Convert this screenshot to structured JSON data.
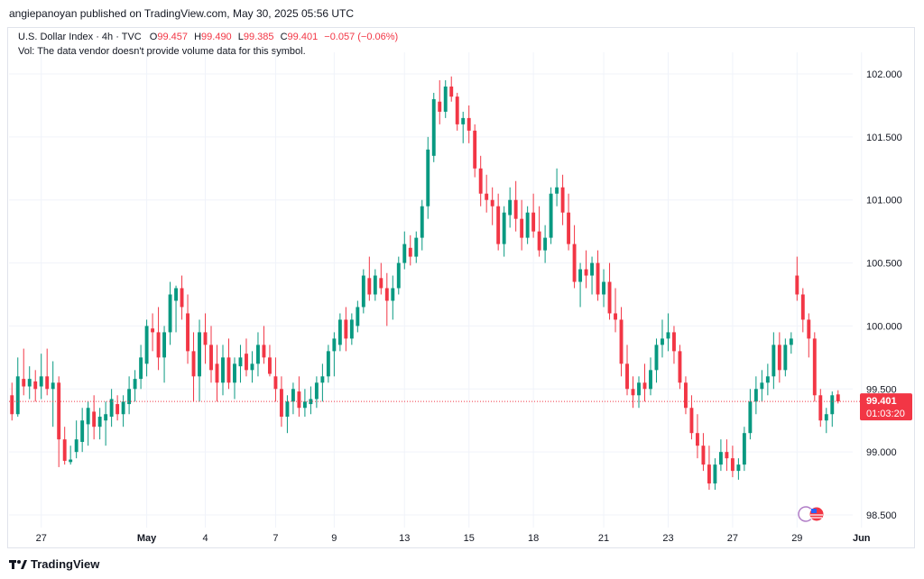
{
  "header": {
    "published_text": "angiepanoyan published on TradingView.com, May 30, 2025 05:56 UTC"
  },
  "legend": {
    "symbol": "U.S. Dollar Index · 4h · TVC",
    "o_label": "O",
    "o_value": "99.457",
    "h_label": "H",
    "h_value": "99.490",
    "l_label": "L",
    "l_value": "99.385",
    "c_label": "C",
    "c_value": "99.401",
    "change": "−0.057 (−0.06%)",
    "volume_note": "Vol: The data vendor doesn't provide volume data for this symbol."
  },
  "price_tag": {
    "price": "99.401",
    "countdown": "01:03:20"
  },
  "footer": {
    "brand": "TradingView"
  },
  "colors": {
    "up": "#089981",
    "down": "#f23645",
    "grid": "#f0f3fa",
    "text": "#131722"
  },
  "chart_data": {
    "type": "candlestick",
    "title": "U.S. Dollar Index · 4h · TVC",
    "y_ticks": [
      "102.000",
      "101.500",
      "101.000",
      "100.500",
      "100.000",
      "99.500",
      "99.000",
      "98.500"
    ],
    "ylim": [
      98.4,
      102.1
    ],
    "x_ticks": [
      {
        "label": "27",
        "index": 5
      },
      {
        "label": "May",
        "index": 23
      },
      {
        "label": "4",
        "index": 33
      },
      {
        "label": "7",
        "index": 45
      },
      {
        "label": "9",
        "index": 55
      },
      {
        "label": "13",
        "index": 67
      },
      {
        "label": "15",
        "index": 78
      },
      {
        "label": "18",
        "index": 89
      },
      {
        "label": "21",
        "index": 101
      },
      {
        "label": "23",
        "index": 112
      },
      {
        "label": "27",
        "index": 123
      },
      {
        "label": "29",
        "index": 134
      },
      {
        "label": "Jun",
        "index": 145
      }
    ],
    "last_price": 99.401,
    "ohlc": [
      [
        99.45,
        99.55,
        99.25,
        99.3
      ],
      [
        99.3,
        99.75,
        99.28,
        99.6
      ],
      [
        99.58,
        99.82,
        99.45,
        99.52
      ],
      [
        99.52,
        99.68,
        99.42,
        99.58
      ],
      [
        99.56,
        99.65,
        99.4,
        99.5
      ],
      [
        99.52,
        99.78,
        99.42,
        99.6
      ],
      [
        99.6,
        99.82,
        99.45,
        99.5
      ],
      [
        99.5,
        99.72,
        99.2,
        99.55
      ],
      [
        99.55,
        99.6,
        98.88,
        99.1
      ],
      [
        99.1,
        99.2,
        98.9,
        98.93
      ],
      [
        98.92,
        99.05,
        98.9,
        98.94
      ],
      [
        99.0,
        99.25,
        98.95,
        99.1
      ],
      [
        99.08,
        99.35,
        99.0,
        99.25
      ],
      [
        99.22,
        99.4,
        99.05,
        99.35
      ],
      [
        99.32,
        99.45,
        99.1,
        99.2
      ],
      [
        99.2,
        99.35,
        99.1,
        99.28
      ],
      [
        99.25,
        99.4,
        99.05,
        99.3
      ],
      [
        99.28,
        99.5,
        99.2,
        99.42
      ],
      [
        99.38,
        99.45,
        99.25,
        99.3
      ],
      [
        99.3,
        99.45,
        99.2,
        99.4
      ],
      [
        99.38,
        99.6,
        99.3,
        99.5
      ],
      [
        99.5,
        99.65,
        99.4,
        99.58
      ],
      [
        99.58,
        99.85,
        99.5,
        99.75
      ],
      [
        99.7,
        100.05,
        99.6,
        100.0
      ],
      [
        99.98,
        100.1,
        99.8,
        99.95
      ],
      [
        99.95,
        100.15,
        99.65,
        99.75
      ],
      [
        99.75,
        100.0,
        99.55,
        99.95
      ],
      [
        99.95,
        100.35,
        99.85,
        100.25
      ],
      [
        100.2,
        100.32,
        99.95,
        100.3
      ],
      [
        100.3,
        100.4,
        100.05,
        100.15
      ],
      [
        100.1,
        100.25,
        99.7,
        99.8
      ],
      [
        99.8,
        99.95,
        99.4,
        99.6
      ],
      [
        99.6,
        100.05,
        99.4,
        99.95
      ],
      [
        99.95,
        100.1,
        99.7,
        99.85
      ],
      [
        99.85,
        100.0,
        99.55,
        99.65
      ],
      [
        99.7,
        99.85,
        99.4,
        99.55
      ],
      [
        99.55,
        99.85,
        99.45,
        99.75
      ],
      [
        99.75,
        99.9,
        99.5,
        99.55
      ],
      [
        99.55,
        99.75,
        99.42,
        99.7
      ],
      [
        99.68,
        99.85,
        99.55,
        99.75
      ],
      [
        99.78,
        99.9,
        99.6,
        99.65
      ],
      [
        99.65,
        99.8,
        99.55,
        99.7
      ],
      [
        99.7,
        99.95,
        99.6,
        99.85
      ],
      [
        99.85,
        100.0,
        99.7,
        99.75
      ],
      [
        99.75,
        99.85,
        99.6,
        99.62
      ],
      [
        99.6,
        99.75,
        99.4,
        99.5
      ],
      [
        99.5,
        99.6,
        99.2,
        99.28
      ],
      [
        99.28,
        99.45,
        99.15,
        99.4
      ],
      [
        99.4,
        99.55,
        99.3,
        99.5
      ],
      [
        99.48,
        99.6,
        99.28,
        99.35
      ],
      [
        99.35,
        99.5,
        99.28,
        99.4
      ],
      [
        99.38,
        99.52,
        99.3,
        99.42
      ],
      [
        99.42,
        99.6,
        99.35,
        99.55
      ],
      [
        99.55,
        99.7,
        99.4,
        99.6
      ],
      [
        99.6,
        99.85,
        99.55,
        99.8
      ],
      [
        99.8,
        99.95,
        99.6,
        99.9
      ],
      [
        99.85,
        100.1,
        99.8,
        100.05
      ],
      [
        100.05,
        100.15,
        99.8,
        99.9
      ],
      [
        99.9,
        100.1,
        99.85,
        100.05
      ],
      [
        100.0,
        100.2,
        99.95,
        100.15
      ],
      [
        100.15,
        100.45,
        100.1,
        100.4
      ],
      [
        100.38,
        100.55,
        100.2,
        100.25
      ],
      [
        100.25,
        100.45,
        100.2,
        100.4
      ],
      [
        100.38,
        100.5,
        100.25,
        100.3
      ],
      [
        100.3,
        100.42,
        100.0,
        100.2
      ],
      [
        100.2,
        100.4,
        100.05,
        100.3
      ],
      [
        100.3,
        100.55,
        100.25,
        100.5
      ],
      [
        100.5,
        100.75,
        100.45,
        100.65
      ],
      [
        100.62,
        100.72,
        100.48,
        100.55
      ],
      [
        100.55,
        100.75,
        100.5,
        100.7
      ],
      [
        100.7,
        101.0,
        100.6,
        100.95
      ],
      [
        100.95,
        101.5,
        100.85,
        101.4
      ],
      [
        101.35,
        101.85,
        101.3,
        101.8
      ],
      [
        101.78,
        101.95,
        101.6,
        101.7
      ],
      [
        101.7,
        101.95,
        101.65,
        101.9
      ],
      [
        101.9,
        101.98,
        101.78,
        101.82
      ],
      [
        101.82,
        101.85,
        101.55,
        101.6
      ],
      [
        101.6,
        101.7,
        101.45,
        101.65
      ],
      [
        101.65,
        101.75,
        101.45,
        101.55
      ],
      [
        101.55,
        101.6,
        101.18,
        101.25
      ],
      [
        101.25,
        101.35,
        100.95,
        101.05
      ],
      [
        101.05,
        101.2,
        100.9,
        101.0
      ],
      [
        101.0,
        101.1,
        100.8,
        100.95
      ],
      [
        100.95,
        101.05,
        100.6,
        100.65
      ],
      [
        100.65,
        100.95,
        100.55,
        100.9
      ],
      [
        100.88,
        101.1,
        100.78,
        101.0
      ],
      [
        101.0,
        101.15,
        100.75,
        100.85
      ],
      [
        100.85,
        101.0,
        100.6,
        100.7
      ],
      [
        100.7,
        100.95,
        100.65,
        100.9
      ],
      [
        100.9,
        101.05,
        100.7,
        100.75
      ],
      [
        100.75,
        100.95,
        100.55,
        100.6
      ],
      [
        100.6,
        100.8,
        100.5,
        100.7
      ],
      [
        100.7,
        101.1,
        100.65,
        101.05
      ],
      [
        101.05,
        101.25,
        100.95,
        101.1
      ],
      [
        101.1,
        101.2,
        100.8,
        100.9
      ],
      [
        100.9,
        101.05,
        100.6,
        100.65
      ],
      [
        100.65,
        100.8,
        100.3,
        100.35
      ],
      [
        100.35,
        100.5,
        100.15,
        100.45
      ],
      [
        100.45,
        100.6,
        100.3,
        100.4
      ],
      [
        100.4,
        100.55,
        100.25,
        100.5
      ],
      [
        100.5,
        100.6,
        100.2,
        100.25
      ],
      [
        100.25,
        100.45,
        100.15,
        100.35
      ],
      [
        100.35,
        100.5,
        100.05,
        100.1
      ],
      [
        100.1,
        100.3,
        99.95,
        100.05
      ],
      [
        100.05,
        100.15,
        99.6,
        99.7
      ],
      [
        99.7,
        99.85,
        99.45,
        99.5
      ],
      [
        99.5,
        99.6,
        99.35,
        99.45
      ],
      [
        99.45,
        99.6,
        99.35,
        99.55
      ],
      [
        99.55,
        99.7,
        99.4,
        99.5
      ],
      [
        99.5,
        99.75,
        99.45,
        99.65
      ],
      [
        99.65,
        99.9,
        99.55,
        99.85
      ],
      [
        99.85,
        100.05,
        99.75,
        99.9
      ],
      [
        99.9,
        100.1,
        99.8,
        99.95
      ],
      [
        99.95,
        100.0,
        99.7,
        99.8
      ],
      [
        99.8,
        99.85,
        99.5,
        99.55
      ],
      [
        99.55,
        99.6,
        99.3,
        99.35
      ],
      [
        99.35,
        99.45,
        99.1,
        99.15
      ],
      [
        99.15,
        99.3,
        98.95,
        99.05
      ],
      [
        99.05,
        99.15,
        98.85,
        98.9
      ],
      [
        98.9,
        99.05,
        98.7,
        98.75
      ],
      [
        98.75,
        98.95,
        98.7,
        98.9
      ],
      [
        98.9,
        99.1,
        98.85,
        99.0
      ],
      [
        99.0,
        99.1,
        98.85,
        98.95
      ],
      [
        98.95,
        99.05,
        98.8,
        98.85
      ],
      [
        98.85,
        98.95,
        98.78,
        98.9
      ],
      [
        98.9,
        99.2,
        98.85,
        99.15
      ],
      [
        99.15,
        99.5,
        99.1,
        99.4
      ],
      [
        99.4,
        99.6,
        99.3,
        99.5
      ],
      [
        99.5,
        99.65,
        99.4,
        99.55
      ],
      [
        99.55,
        99.7,
        99.45,
        99.6
      ],
      [
        99.6,
        99.95,
        99.5,
        99.85
      ],
      [
        99.85,
        99.95,
        99.55,
        99.65
      ],
      [
        99.65,
        99.9,
        99.6,
        99.85
      ],
      [
        99.85,
        99.95,
        99.78,
        99.9
      ],
      [
        100.4,
        100.55,
        100.2,
        100.25
      ],
      [
        100.25,
        100.3,
        99.95,
        100.05
      ],
      [
        100.05,
        100.1,
        99.75,
        99.9
      ],
      [
        99.9,
        99.95,
        99.4,
        99.45
      ],
      [
        99.45,
        99.5,
        99.2,
        99.25
      ],
      [
        99.25,
        99.35,
        99.15,
        99.3
      ],
      [
        99.3,
        99.48,
        99.2,
        99.45
      ],
      [
        99.457,
        99.49,
        99.385,
        99.401
      ]
    ]
  }
}
